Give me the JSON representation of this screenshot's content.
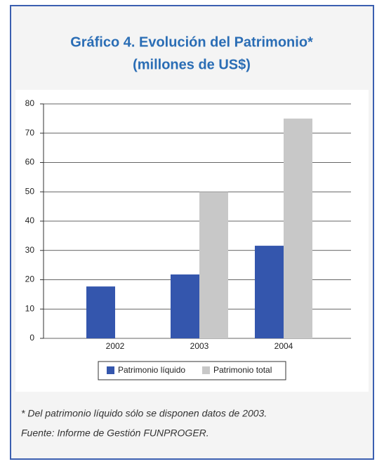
{
  "chart_data": {
    "type": "bar",
    "title": "Gráfico 4. Evolución del Patrimonio*",
    "subtitle": "(millones de US$)",
    "categories": [
      "2002",
      "2003",
      "2004"
    ],
    "series": [
      {
        "name": "Patrimonio líquido",
        "color": "#3456ad",
        "values": [
          17.7,
          21.8,
          31.6
        ]
      },
      {
        "name": "Patrimonio total",
        "color": "#c8c8c8",
        "values": [
          null,
          50,
          75
        ]
      }
    ],
    "ylim": [
      0,
      80
    ],
    "yticks": [
      0,
      10,
      20,
      30,
      40,
      50,
      60,
      70,
      80
    ],
    "grid": true,
    "legend": "bottom",
    "notes": [
      "* Del patrimonio líquido sólo se disponen datos de 2003.",
      "Fuente: Informe de Gestión FUNPROGER."
    ]
  }
}
